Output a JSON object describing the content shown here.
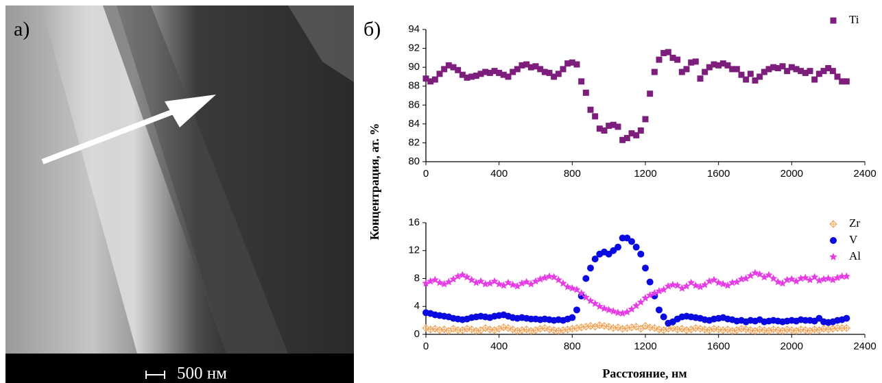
{
  "image": {
    "label": "а)",
    "scale_bar": "500 нм"
  },
  "chart_label": "б)",
  "chart_data": [
    {
      "type": "scatter",
      "ylabel": "Концентрация, ат. %",
      "legend": "upper right",
      "xlim": [
        0,
        2400
      ],
      "xticks": [
        0,
        400,
        800,
        1200,
        1600,
        2000,
        2400
      ],
      "ylim": [
        80,
        94
      ],
      "yticks": [
        80,
        82,
        84,
        86,
        88,
        90,
        92,
        94
      ],
      "x": [
        0,
        25,
        50,
        75,
        100,
        125,
        150,
        175,
        200,
        225,
        250,
        275,
        300,
        325,
        350,
        375,
        400,
        425,
        450,
        475,
        500,
        525,
        550,
        575,
        600,
        625,
        650,
        675,
        700,
        725,
        750,
        775,
        800,
        825,
        850,
        875,
        900,
        925,
        950,
        975,
        1000,
        1025,
        1050,
        1075,
        1100,
        1125,
        1150,
        1175,
        1200,
        1225,
        1250,
        1275,
        1300,
        1325,
        1350,
        1375,
        1400,
        1425,
        1450,
        1475,
        1500,
        1525,
        1550,
        1575,
        1600,
        1625,
        1650,
        1675,
        1700,
        1725,
        1750,
        1775,
        1800,
        1825,
        1850,
        1875,
        1900,
        1925,
        1950,
        1975,
        2000,
        2025,
        2050,
        2075,
        2100,
        2125,
        2150,
        2175,
        2200,
        2225,
        2250,
        2275,
        2300
      ],
      "series": [
        {
          "name": "Ti",
          "color": "#7d1e7d",
          "marker": "square",
          "values": [
            88.8,
            88.5,
            88.7,
            89.3,
            89.8,
            90.2,
            90.0,
            89.7,
            89.2,
            88.9,
            89.0,
            89.1,
            89.3,
            89.5,
            89.4,
            89.6,
            89.4,
            89.2,
            89.0,
            89.5,
            89.8,
            90.2,
            90.3,
            90.0,
            90.1,
            89.8,
            89.5,
            89.4,
            89.0,
            89.3,
            89.8,
            90.4,
            90.5,
            90.3,
            88.5,
            87.3,
            85.5,
            84.8,
            83.5,
            83.3,
            83.8,
            83.9,
            83.7,
            82.3,
            82.5,
            83.0,
            82.8,
            83.3,
            84.5,
            87.2,
            89.5,
            90.8,
            91.5,
            91.6,
            91.0,
            90.8,
            89.5,
            89.8,
            90.5,
            90.6,
            88.8,
            89.5,
            90.0,
            90.3,
            90.2,
            90.4,
            90.2,
            89.8,
            89.8,
            89.2,
            88.7,
            89.3,
            88.6,
            89.0,
            89.5,
            89.8,
            90.0,
            89.9,
            90.1,
            89.6,
            90.0,
            89.8,
            89.6,
            89.4,
            89.6,
            88.7,
            89.3,
            89.6,
            89.9,
            89.6,
            89.0,
            88.5,
            88.5
          ]
        }
      ]
    },
    {
      "type": "scatter",
      "xlabel": "Расстояние, нм",
      "legend": "upper right",
      "xlim": [
        0,
        2400
      ],
      "xticks": [
        0,
        400,
        800,
        1200,
        1600,
        2000,
        2400
      ],
      "ylim": [
        0,
        16
      ],
      "yticks": [
        0,
        4,
        8,
        12,
        16
      ],
      "x": [
        0,
        25,
        50,
        75,
        100,
        125,
        150,
        175,
        200,
        225,
        250,
        275,
        300,
        325,
        350,
        375,
        400,
        425,
        450,
        475,
        500,
        525,
        550,
        575,
        600,
        625,
        650,
        675,
        700,
        725,
        750,
        775,
        800,
        825,
        850,
        875,
        900,
        925,
        950,
        975,
        1000,
        1025,
        1050,
        1075,
        1100,
        1125,
        1150,
        1175,
        1200,
        1225,
        1250,
        1275,
        1300,
        1325,
        1350,
        1375,
        1400,
        1425,
        1450,
        1475,
        1500,
        1525,
        1550,
        1575,
        1600,
        1625,
        1650,
        1675,
        1700,
        1725,
        1750,
        1775,
        1800,
        1825,
        1850,
        1875,
        1900,
        1925,
        1950,
        1975,
        2000,
        2025,
        2050,
        2075,
        2100,
        2125,
        2150,
        2175,
        2200,
        2225,
        2250,
        2275,
        2300
      ],
      "series": [
        {
          "name": "Zr",
          "color": "#f0a050",
          "marker": "crossdiamond",
          "values": [
            0.9,
            0.7,
            0.8,
            0.6,
            0.7,
            0.5,
            0.8,
            0.6,
            0.6,
            0.8,
            0.7,
            0.5,
            0.6,
            0.9,
            0.7,
            0.6,
            0.8,
            1.0,
            0.9,
            0.7,
            0.5,
            0.6,
            0.7,
            0.5,
            0.6,
            0.8,
            0.9,
            0.7,
            0.6,
            0.5,
            0.6,
            0.7,
            0.8,
            0.9,
            1.0,
            1.1,
            1.2,
            1.1,
            1.3,
            1.2,
            1.1,
            0.9,
            1.0,
            0.8,
            0.9,
            1.0,
            1.1,
            0.8,
            1.2,
            1.0,
            0.9,
            0.7,
            0.6,
            0.8,
            0.9,
            0.7,
            0.8,
            0.6,
            0.7,
            0.9,
            0.8,
            0.7,
            0.6,
            0.8,
            0.7,
            0.6,
            0.7,
            0.5,
            0.6,
            0.8,
            0.7,
            0.6,
            0.5,
            0.7,
            0.6,
            0.5,
            0.7,
            0.6,
            0.5,
            0.7,
            0.6,
            0.5,
            0.7,
            0.6,
            0.5,
            0.7,
            0.6,
            0.8,
            0.7,
            0.8,
            0.9,
            0.9,
            0.9
          ]
        },
        {
          "name": "V",
          "color": "#0a0ae0",
          "marker": "circle",
          "values": [
            3.1,
            3.0,
            2.8,
            2.7,
            2.6,
            2.5,
            2.3,
            2.2,
            2.1,
            2.2,
            2.4,
            2.5,
            2.6,
            2.5,
            2.4,
            2.6,
            2.7,
            2.8,
            2.6,
            2.4,
            2.3,
            2.4,
            2.3,
            2.2,
            2.2,
            2.1,
            2.2,
            2.1,
            2.0,
            2.1,
            2.0,
            2.2,
            2.4,
            3.5,
            5.5,
            8.0,
            9.5,
            10.8,
            11.5,
            11.8,
            11.5,
            12.0,
            12.5,
            13.8,
            13.8,
            13.3,
            12.5,
            11.5,
            9.5,
            7.5,
            5.5,
            3.5,
            2.5,
            1.6,
            1.8,
            2.2,
            2.5,
            2.6,
            2.5,
            2.4,
            2.3,
            2.1,
            2.0,
            2.2,
            2.3,
            2.4,
            2.2,
            2.1,
            1.9,
            2.0,
            1.8,
            2.0,
            1.9,
            2.1,
            1.8,
            1.9,
            2.0,
            1.9,
            1.8,
            1.9,
            2.0,
            1.9,
            2.1,
            2.0,
            2.0,
            1.9,
            2.3,
            1.8,
            1.7,
            1.8,
            2.0,
            2.1,
            2.3
          ]
        },
        {
          "name": "Al",
          "color": "#e63ce6",
          "marker": "star",
          "values": [
            7.3,
            7.6,
            7.8,
            7.4,
            7.2,
            7.5,
            7.9,
            8.3,
            8.5,
            8.2,
            7.8,
            7.4,
            7.6,
            7.2,
            7.3,
            7.6,
            7.2,
            7.0,
            7.4,
            7.1,
            6.9,
            7.3,
            7.5,
            7.2,
            7.6,
            7.9,
            8.1,
            8.3,
            8.2,
            7.8,
            7.3,
            6.8,
            6.6,
            6.4,
            5.9,
            5.3,
            4.8,
            4.4,
            4.0,
            3.7,
            3.5,
            3.3,
            3.1,
            3.0,
            3.2,
            3.6,
            4.1,
            4.6,
            5.2,
            5.6,
            5.9,
            6.2,
            6.4,
            6.9,
            7.1,
            7.0,
            6.6,
            6.9,
            7.4,
            7.0,
            6.8,
            7.1,
            7.6,
            7.8,
            7.4,
            7.2,
            7.0,
            7.4,
            7.5,
            7.9,
            8.0,
            8.4,
            8.8,
            8.6,
            8.2,
            8.5,
            8.0,
            7.5,
            7.3,
            7.8,
            7.9,
            7.6,
            8.0,
            8.1,
            7.8,
            8.2,
            7.7,
            7.9,
            8.0,
            7.8,
            8.1,
            8.3,
            8.3
          ]
        }
      ]
    }
  ]
}
